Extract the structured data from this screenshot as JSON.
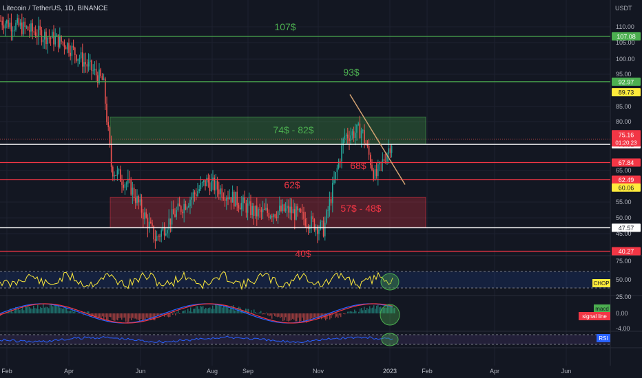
{
  "header": {
    "symbol_title": "Litecoin / TetherUS, 1D, BINANCE",
    "currency": "USDT"
  },
  "chart_data": {
    "type": "candlestick",
    "symbol": "Litecoin / TetherUS",
    "interval": "1D",
    "exchange": "BINANCE",
    "y_unit": "USDT",
    "ylim": [
      40,
      115
    ],
    "y_ticks": [
      "110.00",
      "105.00",
      "100.00",
      "95.00",
      "85.00",
      "80.00",
      "65.00",
      "55.00",
      "50.00",
      "45.00"
    ],
    "x_ticks": [
      "Feb",
      "Apr",
      "Jun",
      "Aug",
      "Sep",
      "Nov",
      "2023",
      "Feb",
      "Apr",
      "Jun"
    ],
    "last_price": {
      "value": "75.16",
      "countdown": "01:20:23"
    },
    "price_path": [
      [
        "Feb",
        112
      ],
      [
        "Mar",
        110
      ],
      [
        "Apr",
        105
      ],
      [
        "May",
        93
      ],
      [
        "May",
        66
      ],
      [
        "Jun",
        60
      ],
      [
        "Jun",
        44
      ],
      [
        "Jul",
        51
      ],
      [
        "Aug",
        62
      ],
      [
        "Aug",
        58
      ],
      [
        "Sep",
        52
      ],
      [
        "Oct",
        53
      ],
      [
        "Nov",
        47
      ],
      [
        "Nov",
        76
      ],
      [
        "Dec",
        78
      ],
      [
        "Dec",
        63
      ],
      [
        "2023",
        75
      ]
    ],
    "levels": [
      {
        "value": 107.08,
        "label": "107.08",
        "annotation": "107$",
        "color": "#4caf50"
      },
      {
        "value": 92.97,
        "label": "92.97",
        "annotation": "93$",
        "color": "#4caf50"
      },
      {
        "value": 89.73,
        "label": "89.73",
        "annotation": "",
        "color": "#ffeb3b"
      },
      {
        "value": 73.51,
        "label": "73.51",
        "annotation": "",
        "color": "#ffffff"
      },
      {
        "value": 67.84,
        "label": "67.84",
        "annotation": "68$",
        "color": "#f23645"
      },
      {
        "value": 62.49,
        "label": "62.49",
        "annotation": "62$",
        "color": "#f23645"
      },
      {
        "value": 60.06,
        "label": "60.06",
        "annotation": "",
        "color": "#ffeb3b"
      },
      {
        "value": 47.57,
        "label": "47.57",
        "annotation": "",
        "color": "#ffffff"
      },
      {
        "value": 40.27,
        "label": "40.27",
        "annotation": "40$",
        "color": "#f23645"
      }
    ],
    "zones": [
      {
        "label": "74$ - 82$",
        "from": 73.51,
        "to": 82,
        "color": "#4caf50"
      },
      {
        "label": "57$ - 48$",
        "from": 47.57,
        "to": 57,
        "color": "#f23645"
      }
    ],
    "trendline": {
      "from": [
        "Nov",
        89
      ],
      "to": [
        "2023",
        61
      ]
    },
    "indicators": [
      {
        "name": "CHOP",
        "ticks": [
          "75.00",
          "50.00",
          "25.00"
        ],
        "color": "#ffeb3b"
      },
      {
        "name": "MACD",
        "ticks": [
          "0.00",
          "-4.00"
        ],
        "legend": [
          "macd",
          "signal line"
        ],
        "colors": [
          "#2962ff",
          "#f23645"
        ]
      },
      {
        "name": "RSI",
        "ticks": [],
        "color": "#2962ff"
      }
    ]
  }
}
